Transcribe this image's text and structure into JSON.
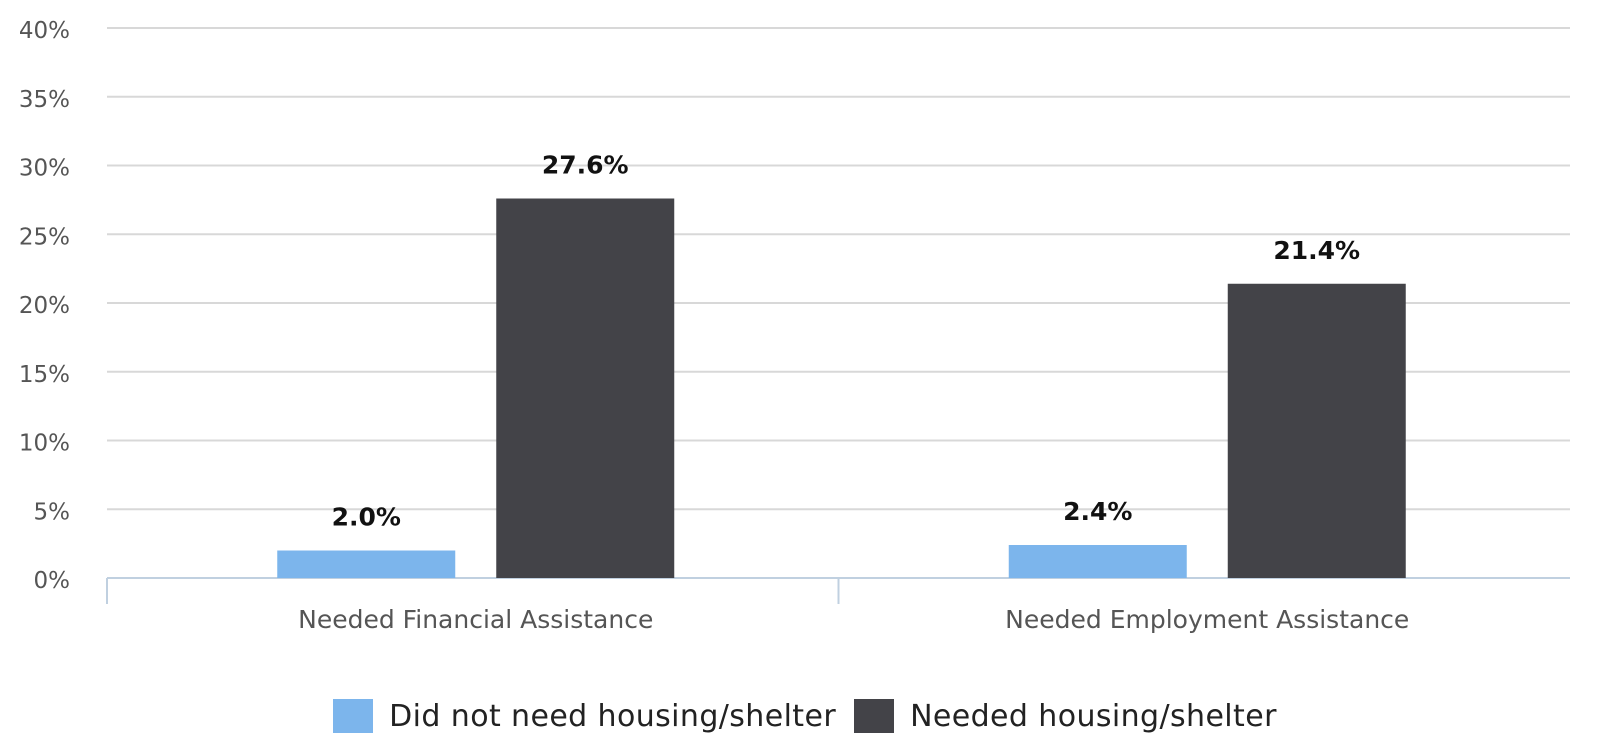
{
  "chart_data": {
    "type": "bar",
    "categories": [
      "Needed Financial Assistance",
      "Needed Employment Assistance"
    ],
    "series": [
      {
        "name": "Did not need housing/shelter",
        "values": [
          2.0,
          2.4
        ],
        "labels": [
          "2.0%",
          "2.4%"
        ],
        "color": "#7cb5ec"
      },
      {
        "name": "Needed housing/shelter",
        "values": [
          27.6,
          21.4
        ],
        "labels": [
          "27.6%",
          "21.4%"
        ],
        "color": "#434348"
      }
    ],
    "yticks": [
      {
        "value": 0,
        "label": "0%"
      },
      {
        "value": 5,
        "label": "5%"
      },
      {
        "value": 10,
        "label": "10%"
      },
      {
        "value": 15,
        "label": "15%"
      },
      {
        "value": 20,
        "label": "20%"
      },
      {
        "value": 25,
        "label": "25%"
      },
      {
        "value": 30,
        "label": "30%"
      },
      {
        "value": 35,
        "label": "35%"
      },
      {
        "value": 40,
        "label": "40%"
      }
    ],
    "ylim": [
      0,
      40
    ],
    "grid": true,
    "legend_position": "bottom-center",
    "colors": {
      "grid": "#d8d8d8",
      "axis": "#c0d0e0",
      "tick_text": "#555555",
      "category_text": "#555555",
      "data_label_text": "#111111"
    }
  }
}
